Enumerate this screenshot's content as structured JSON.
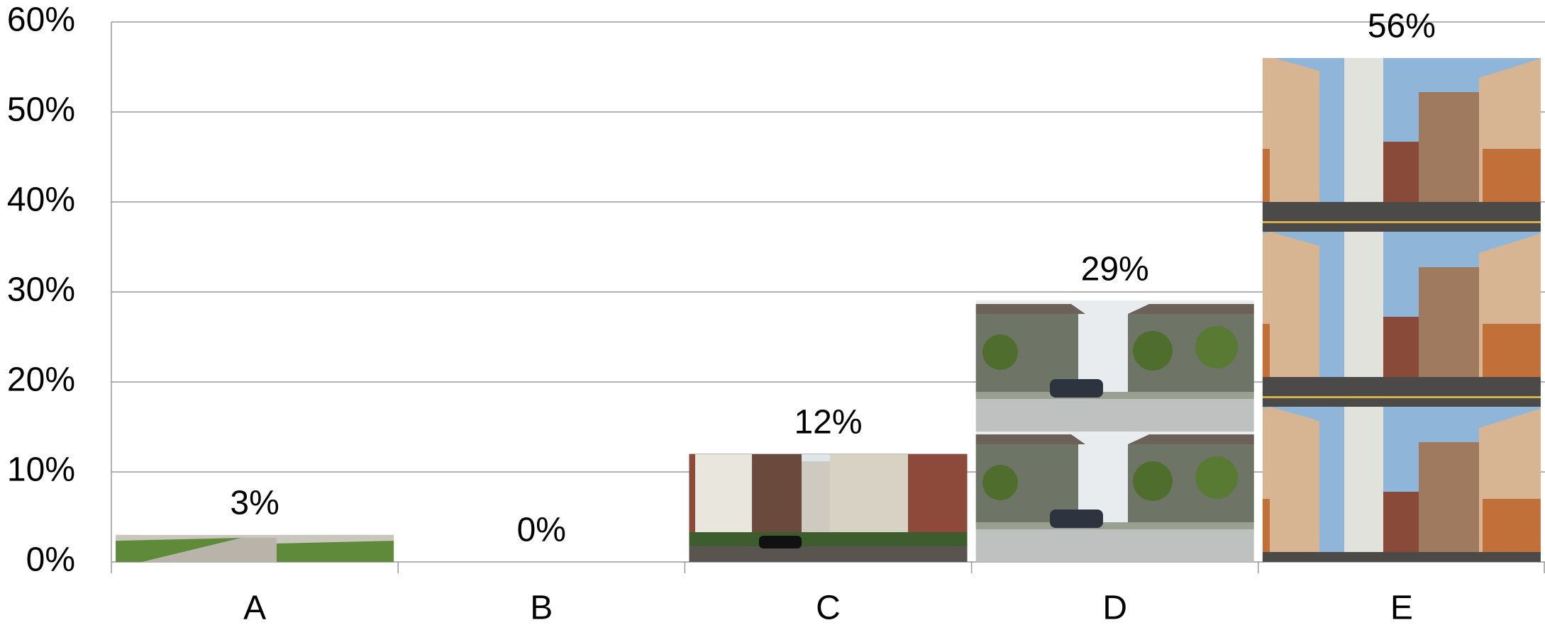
{
  "chart_data": {
    "type": "bar",
    "categories": [
      "A",
      "B",
      "C",
      "D",
      "E"
    ],
    "values": [
      3,
      0,
      12,
      29,
      56
    ],
    "value_labels": [
      "3%",
      "0%",
      "12%",
      "29%",
      "56%"
    ],
    "ylim": [
      0,
      60
    ],
    "yticks": [
      {
        "value": 0,
        "label": "0%"
      },
      {
        "value": 10,
        "label": "10%"
      },
      {
        "value": 20,
        "label": "20%"
      },
      {
        "value": 30,
        "label": "30%"
      },
      {
        "value": 40,
        "label": "40%"
      },
      {
        "value": 50,
        "label": "50%"
      },
      {
        "value": 60,
        "label": "60%"
      }
    ],
    "grid": true
  }
}
